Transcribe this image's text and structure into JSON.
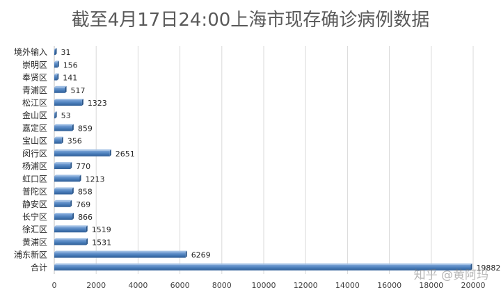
{
  "chart_data": {
    "type": "bar",
    "orientation": "horizontal",
    "title": "截至4月17日24:00上海市现存确诊病例数据",
    "categories": [
      "境外输入",
      "崇明区",
      "奉贤区",
      "青浦区",
      "松江区",
      "金山区",
      "嘉定区",
      "宝山区",
      "闵行区",
      "杨浦区",
      "虹口区",
      "普陀区",
      "静安区",
      "长宁区",
      "徐汇区",
      "黄浦区",
      "浦东新区",
      "合计"
    ],
    "values": [
      31,
      156,
      141,
      517,
      1323,
      53,
      859,
      356,
      2651,
      770,
      1213,
      858,
      769,
      866,
      1519,
      1531,
      6269,
      19882
    ],
    "xlim": [
      0,
      20000
    ],
    "xticks": [
      0,
      2000,
      4000,
      6000,
      8000,
      10000,
      12000,
      14000,
      16000,
      18000,
      20000
    ],
    "grid": true,
    "bar_color": "#4a7ebb",
    "data_labels": true
  },
  "watermark": "知乎 @黄阿玛"
}
